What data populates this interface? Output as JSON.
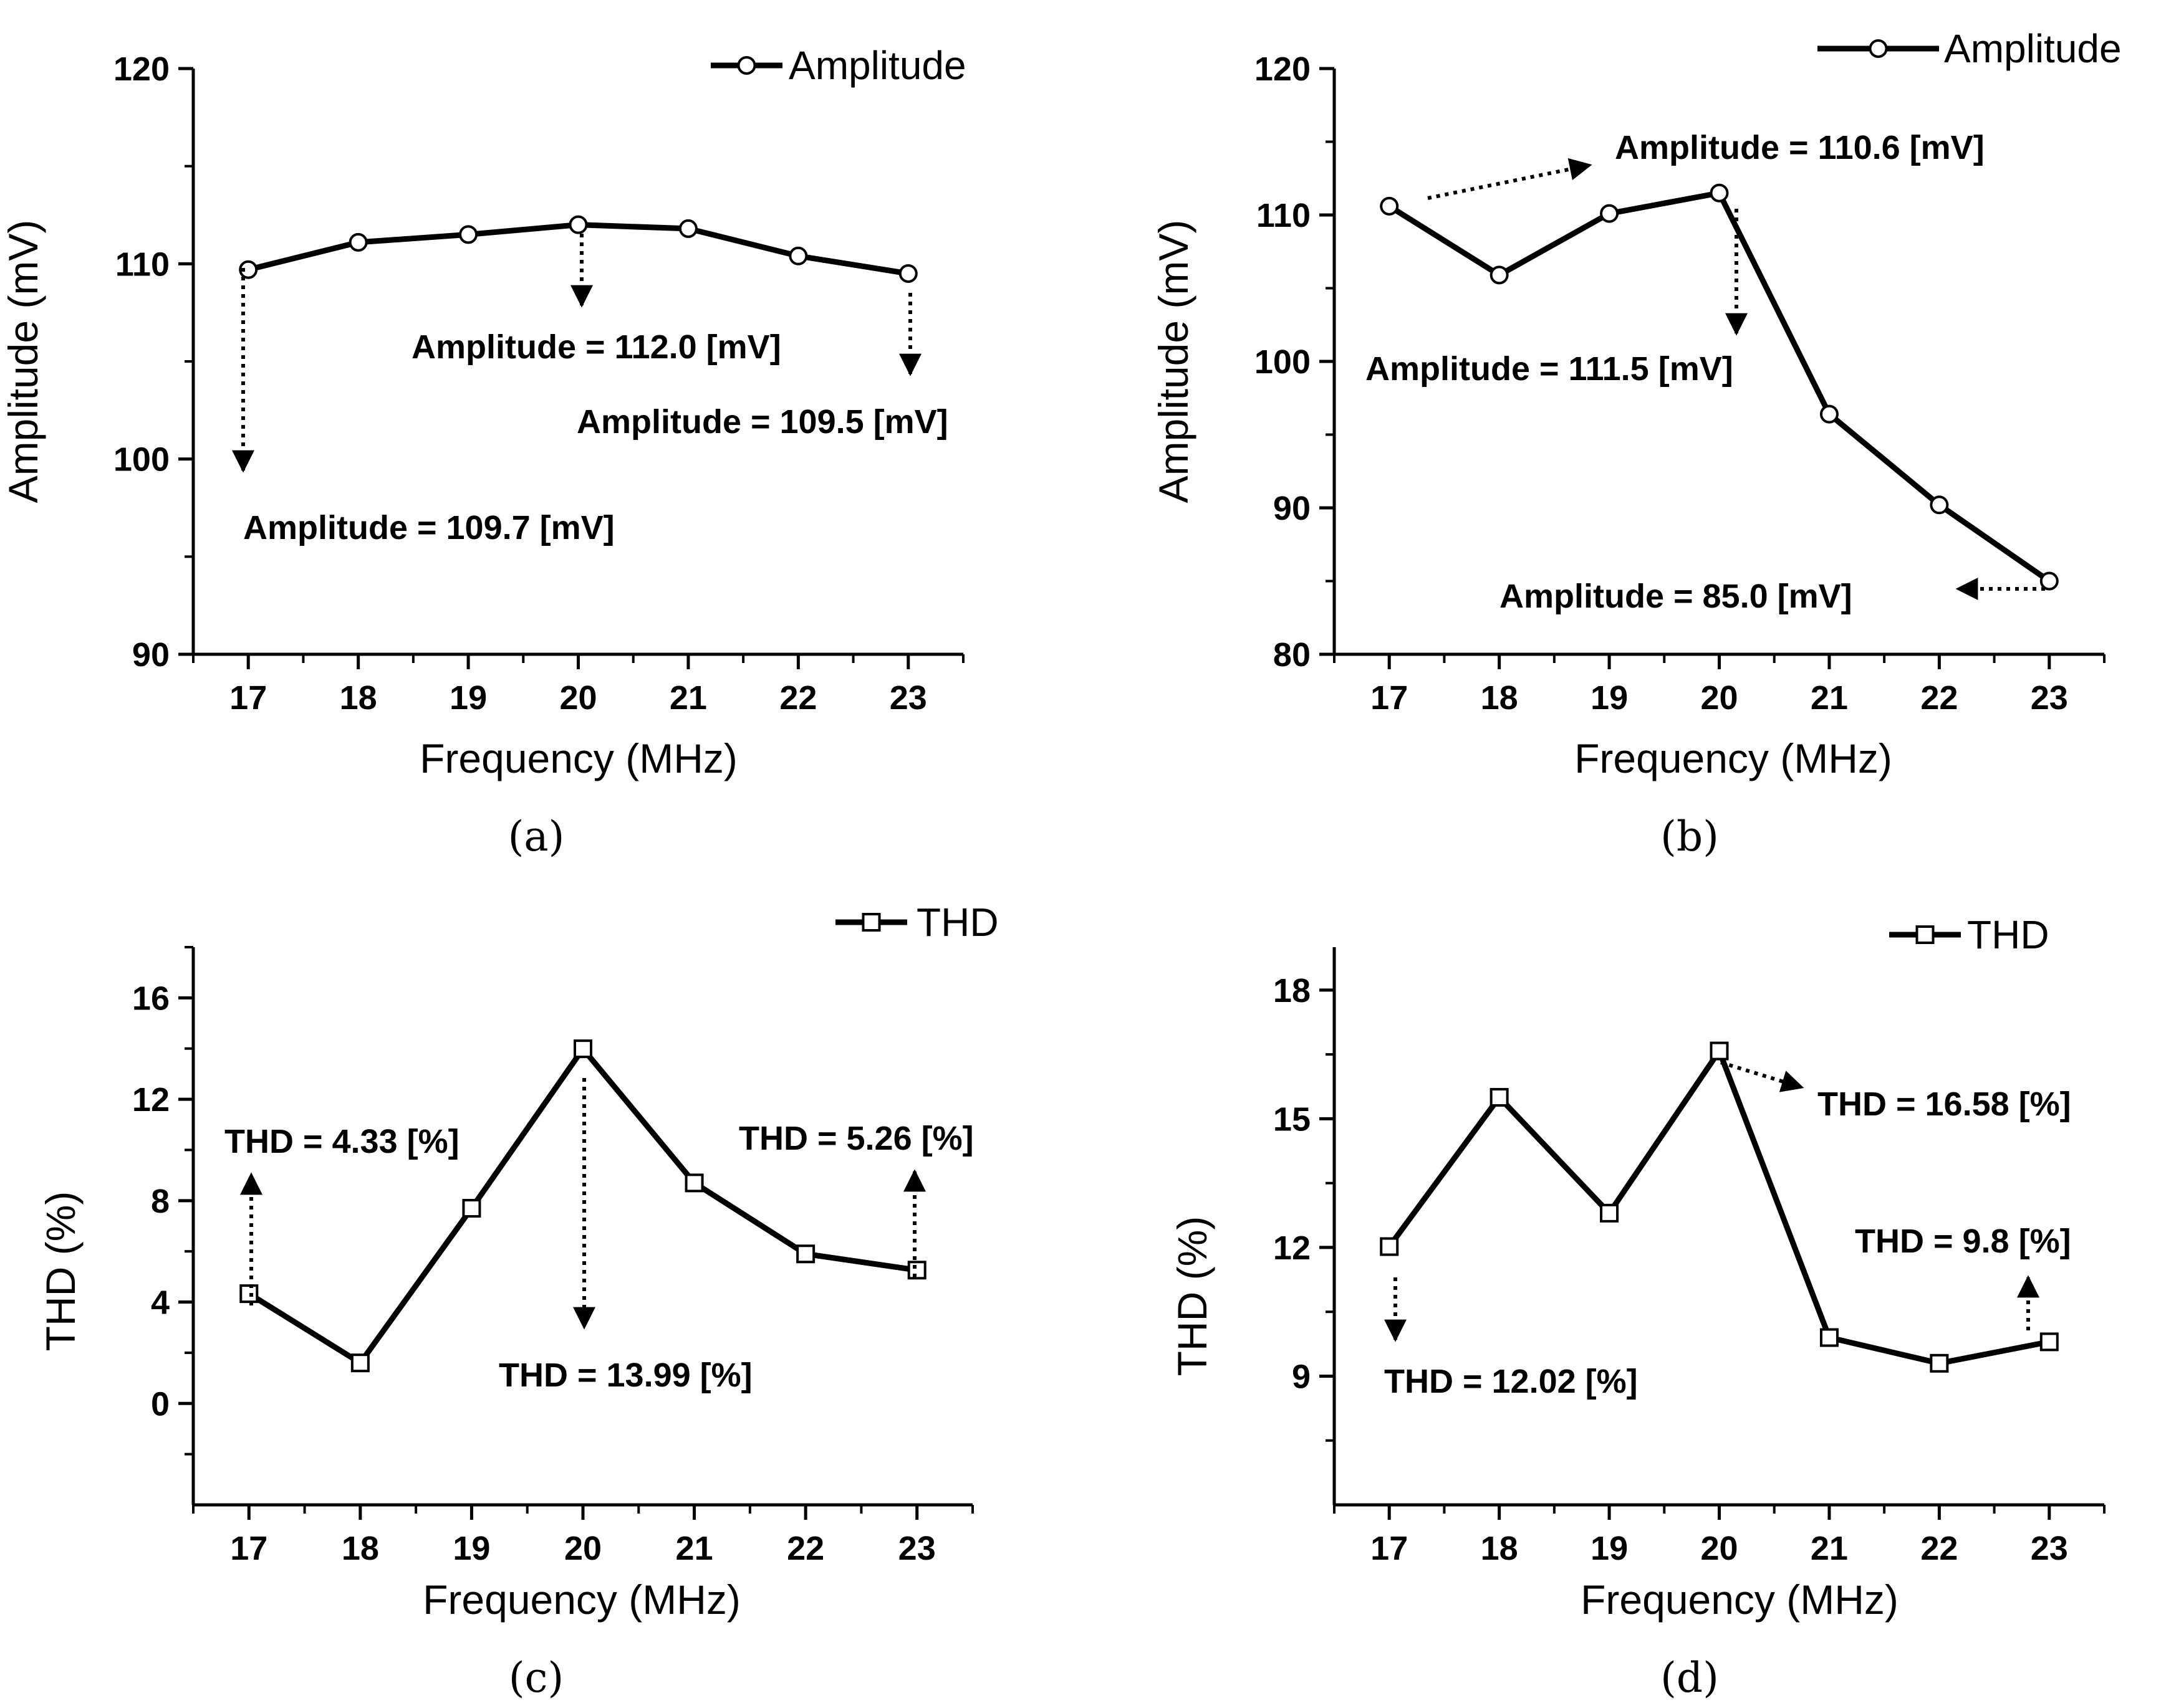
{
  "chart_data": [
    {
      "panel": "(a)",
      "type": "line",
      "xlabel": "Frequency (MHz)",
      "ylabel": "Amplitude (mV)",
      "x": [
        17,
        18,
        19,
        20,
        21,
        22,
        23
      ],
      "xlim": [
        16.5,
        23.5
      ],
      "ylim": [
        90,
        120
      ],
      "yticks": [
        90,
        100,
        110,
        120
      ],
      "marker": "circle",
      "legend_position": "top-right",
      "series": [
        {
          "name": "Amplitude",
          "values": [
            109.7,
            111.1,
            111.5,
            112.0,
            111.8,
            110.4,
            109.5
          ]
        }
      ],
      "annotations": [
        {
          "text": "Amplitude = 109.7 [mV]",
          "x": 17,
          "y": 109.7
        },
        {
          "text": "Amplitude = 112.0 [mV]",
          "x": 20,
          "y": 112.0
        },
        {
          "text": "Amplitude = 109.5 [mV]",
          "x": 23,
          "y": 109.5
        }
      ]
    },
    {
      "panel": "(b)",
      "type": "line",
      "xlabel": "Frequency (MHz)",
      "ylabel": "Amplitude (mV)",
      "x": [
        17,
        18,
        19,
        20,
        21,
        22,
        23
      ],
      "xlim": [
        16.5,
        23.5
      ],
      "ylim": [
        80,
        120
      ],
      "yticks": [
        80,
        90,
        100,
        110,
        120
      ],
      "marker": "circle",
      "legend_position": "top-right",
      "series": [
        {
          "name": "Amplitude",
          "values": [
            110.6,
            105.9,
            110.1,
            111.5,
            96.4,
            90.2,
            85.0
          ]
        }
      ],
      "annotations": [
        {
          "text": "Amplitude = 110.6 [mV]",
          "x": 17,
          "y": 110.6
        },
        {
          "text": "Amplitude = 111.5 [mV]",
          "x": 20,
          "y": 111.5
        },
        {
          "text": "Amplitude = 85.0 [mV]",
          "x": 23,
          "y": 85.0
        }
      ]
    },
    {
      "panel": "(c)",
      "type": "line",
      "xlabel": "Frequency (MHz)",
      "ylabel": "THD (%)",
      "x": [
        17,
        18,
        19,
        20,
        21,
        22,
        23
      ],
      "xlim": [
        16.5,
        23.5
      ],
      "ylim": [
        -4,
        18
      ],
      "yticks": [
        0,
        4,
        8,
        12,
        16
      ],
      "marker": "square",
      "legend_position": "top-right",
      "series": [
        {
          "name": "THD",
          "values": [
            4.33,
            1.6,
            7.7,
            13.99,
            8.7,
            5.9,
            5.26
          ]
        }
      ],
      "annotations": [
        {
          "text": "THD = 4.33 [%]",
          "x": 17,
          "y": 4.33
        },
        {
          "text": "THD = 13.99 [%]",
          "x": 20,
          "y": 13.99
        },
        {
          "text": "THD = 5.26 [%]",
          "x": 23,
          "y": 5.26
        }
      ]
    },
    {
      "panel": "(d)",
      "type": "line",
      "xlabel": "Frequency (MHz)",
      "ylabel": "THD (%)",
      "x": [
        17,
        18,
        19,
        20,
        21,
        22,
        23
      ],
      "xlim": [
        16.5,
        23.5
      ],
      "ylim": [
        6,
        19
      ],
      "yticks": [
        9,
        12,
        15,
        18
      ],
      "marker": "square",
      "legend_position": "top-right",
      "series": [
        {
          "name": "THD",
          "values": [
            12.02,
            15.5,
            12.8,
            16.58,
            9.9,
            9.3,
            9.8
          ]
        }
      ],
      "annotations": [
        {
          "text": "THD = 12.02 [%]",
          "x": 17,
          "y": 12.02
        },
        {
          "text": "THD = 16.58 [%]",
          "x": 20,
          "y": 16.58
        },
        {
          "text": "THD = 9.8 [%]",
          "x": 23,
          "y": 9.8
        }
      ]
    }
  ]
}
